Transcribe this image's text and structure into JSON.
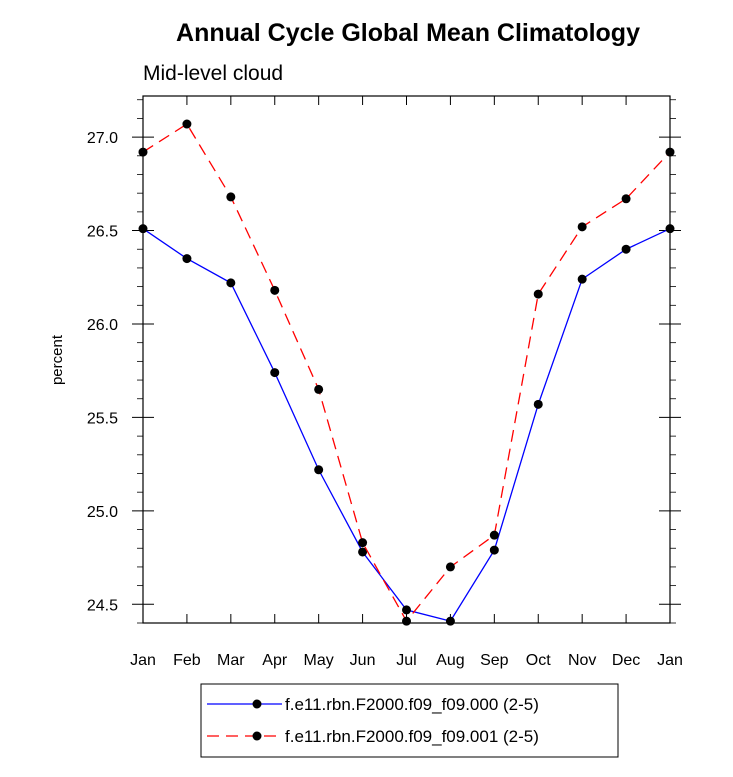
{
  "chart_data": {
    "type": "line",
    "title": "Annual Cycle Global Mean Climatology",
    "subtitle": "Mid-level cloud",
    "xlabel": "",
    "ylabel": "percent",
    "categories": [
      "Jan",
      "Feb",
      "Mar",
      "Apr",
      "May",
      "Jun",
      "Jul",
      "Aug",
      "Sep",
      "Oct",
      "Nov",
      "Dec",
      "Jan"
    ],
    "ylim": [
      24.4,
      27.22
    ],
    "yticks": [
      24.5,
      25.0,
      25.5,
      26.0,
      26.5,
      27.0
    ],
    "ytick_labels": [
      "24.5",
      "25.0",
      "25.5",
      "26.0",
      "26.5",
      "27.0"
    ],
    "series": [
      {
        "name": "f.e11.rbn.F2000.f09_f09.000 (2-5)",
        "color": "#0000ff",
        "dash": "solid",
        "values": [
          26.51,
          26.35,
          26.22,
          25.74,
          25.22,
          24.78,
          24.47,
          24.41,
          24.79,
          25.57,
          26.24,
          26.4,
          26.51
        ]
      },
      {
        "name": "f.e11.rbn.F2000.f09_f09.001 (2-5)",
        "color": "#ff0000",
        "dash": "dashed",
        "values": [
          26.92,
          27.07,
          26.68,
          26.18,
          25.65,
          24.83,
          24.41,
          24.7,
          24.87,
          26.16,
          26.52,
          26.67,
          26.92
        ]
      }
    ],
    "legend_position": "bottom"
  }
}
